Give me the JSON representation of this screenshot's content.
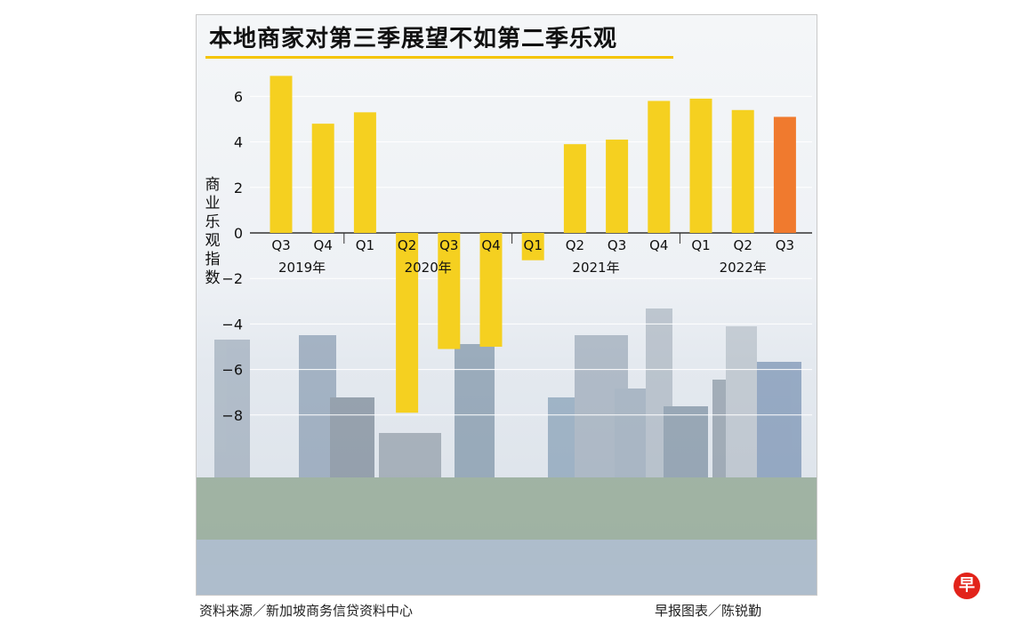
{
  "chart_data": {
    "type": "bar",
    "title": "本地商家对第三季展望不如第二季乐观",
    "ylabel": "商业乐观指数",
    "ylim": [
      -9,
      7
    ],
    "yticks": [
      6,
      4,
      2,
      0,
      -2,
      -4,
      -6,
      -8
    ],
    "ytick_labels": [
      "6",
      "4",
      "2",
      "0",
      "−2",
      "−4",
      "−6",
      "−8"
    ],
    "categories": [
      "Q3",
      "Q4",
      "Q1",
      "Q2",
      "Q3",
      "Q4",
      "Q1",
      "Q2",
      "Q3",
      "Q4",
      "Q1",
      "Q2",
      "Q3"
    ],
    "values": [
      6.9,
      4.8,
      5.3,
      -7.9,
      -5.1,
      -5.0,
      -1.2,
      3.9,
      4.1,
      5.8,
      5.9,
      5.4,
      5.1
    ],
    "year_groups": [
      {
        "label": "2019年",
        "start": 0,
        "end": 1
      },
      {
        "label": "2020年",
        "start": 2,
        "end": 5
      },
      {
        "label": "2021年",
        "start": 6,
        "end": 9
      },
      {
        "label": "2022年",
        "start": 10,
        "end": 12
      }
    ],
    "colors": {
      "bar": "#f5d020",
      "highlight": "#f07a2e",
      "grid": "#ffffff"
    },
    "highlight_index": 12,
    "grid": true
  },
  "footer": {
    "source": "资料来源／新加坡商务信贷资料中心",
    "credit": "早报图表／陈锐勤"
  },
  "logo": {
    "text": "早"
  }
}
